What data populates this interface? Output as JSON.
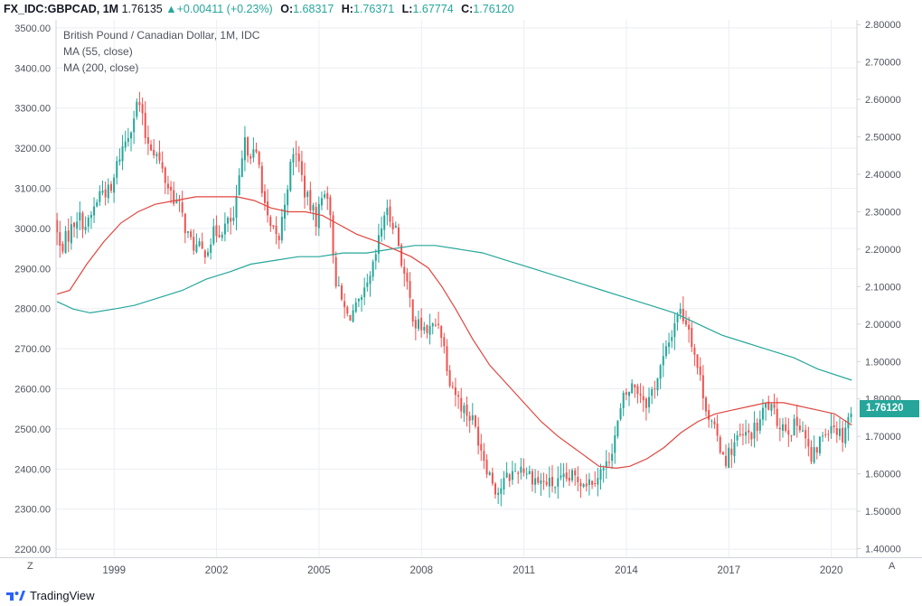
{
  "header": {
    "symbol": "FX_IDC:GBPCAD, 1M",
    "price": "1.76135",
    "change_arrow": "▲",
    "change": "+0.00411 (+0.23%)",
    "o_label": "O:",
    "o_value": "1.68317",
    "h_label": "H:",
    "h_value": "1.76371",
    "l_label": "L:",
    "l_value": "1.67774",
    "c_label": "C:",
    "c_value": "1.76120"
  },
  "legend": {
    "title": "British Pound / Canadian Dollar, 1M, IDC",
    "ma55": "MA (55, close)",
    "ma200": "MA (200, close)"
  },
  "price_badge": "1.76120",
  "corners": {
    "left": "Z",
    "right": "A"
  },
  "footer": {
    "brand": "TradingView"
  },
  "colors": {
    "up": "#26a69a",
    "down": "#ef5350",
    "ma55": "#e0463f",
    "ma200": "#26a69a",
    "grid": "#eceef2"
  },
  "chart_data": {
    "type": "candlestick",
    "title": "British Pound / Canadian Dollar, 1M, IDC",
    "x_range": [
      1997.3,
      2020.75
    ],
    "x_ticks": [
      {
        "year": 1999,
        "label": "1999"
      },
      {
        "year": 2002,
        "label": "2002"
      },
      {
        "year": 2005,
        "label": "2005"
      },
      {
        "year": 2008,
        "label": "2008"
      },
      {
        "year": 2011,
        "label": "2011"
      },
      {
        "year": 2014,
        "label": "2014"
      },
      {
        "year": 2017,
        "label": "2017"
      },
      {
        "year": 2020,
        "label": "2020"
      }
    ],
    "left_axis": {
      "range": [
        2180,
        3520
      ],
      "ticks": [
        "2200.00",
        "2300.00",
        "2400.00",
        "2500.00",
        "2600.00",
        "2700.00",
        "2800.00",
        "2900.00",
        "3000.00",
        "3100.00",
        "3200.00",
        "3300.00",
        "3400.00",
        "3500.00"
      ]
    },
    "right_axis": {
      "range": [
        1.3771,
        2.8126
      ],
      "ticks": [
        "1.40000",
        "1.50000",
        "1.60000",
        "1.70000",
        "1.80000",
        "1.90000",
        "2.00000",
        "2.10000",
        "2.20000",
        "2.30000",
        "2.40000",
        "2.50000",
        "2.60000",
        "2.70000",
        "2.80000"
      ]
    },
    "anchors": [
      [
        1997.33,
        2.28
      ],
      [
        1997.5,
        2.2
      ],
      [
        1997.75,
        2.24
      ],
      [
        1998.0,
        2.29
      ],
      [
        1998.3,
        2.26
      ],
      [
        1998.7,
        2.36
      ],
      [
        1999.0,
        2.35
      ],
      [
        1999.2,
        2.44
      ],
      [
        1999.5,
        2.51
      ],
      [
        1999.8,
        2.6
      ],
      [
        2000.0,
        2.5
      ],
      [
        2000.3,
        2.46
      ],
      [
        2000.6,
        2.38
      ],
      [
        2001.0,
        2.31
      ],
      [
        2001.3,
        2.22
      ],
      [
        2001.7,
        2.19
      ],
      [
        2002.0,
        2.24
      ],
      [
        2002.3,
        2.26
      ],
      [
        2002.6,
        2.28
      ],
      [
        2002.9,
        2.48
      ],
      [
        2003.3,
        2.44
      ],
      [
        2003.6,
        2.26
      ],
      [
        2003.9,
        2.22
      ],
      [
        2004.2,
        2.4
      ],
      [
        2004.4,
        2.47
      ],
      [
        2004.7,
        2.34
      ],
      [
        2005.0,
        2.28
      ],
      [
        2005.3,
        2.38
      ],
      [
        2005.6,
        2.1
      ],
      [
        2005.9,
        2.02
      ],
      [
        2006.3,
        2.05
      ],
      [
        2006.6,
        2.12
      ],
      [
        2006.9,
        2.25
      ],
      [
        2007.0,
        2.3
      ],
      [
        2007.3,
        2.27
      ],
      [
        2007.6,
        2.12
      ],
      [
        2007.9,
        2.0
      ],
      [
        2008.3,
        1.98
      ],
      [
        2008.6,
        2.01
      ],
      [
        2008.9,
        1.86
      ],
      [
        2009.2,
        1.79
      ],
      [
        2009.6,
        1.74
      ],
      [
        2010.0,
        1.62
      ],
      [
        2010.3,
        1.55
      ],
      [
        2010.6,
        1.59
      ],
      [
        2011.0,
        1.62
      ],
      [
        2011.5,
        1.58
      ],
      [
        2012.0,
        1.57
      ],
      [
        2012.5,
        1.59
      ],
      [
        2013.0,
        1.58
      ],
      [
        2013.5,
        1.62
      ],
      [
        2013.8,
        1.72
      ],
      [
        2014.0,
        1.8
      ],
      [
        2014.3,
        1.84
      ],
      [
        2014.7,
        1.79
      ],
      [
        2015.0,
        1.86
      ],
      [
        2015.3,
        1.94
      ],
      [
        2015.6,
        2.04
      ],
      [
        2015.9,
        2.0
      ],
      [
        2016.2,
        1.87
      ],
      [
        2016.5,
        1.75
      ],
      [
        2016.8,
        1.68
      ],
      [
        2017.0,
        1.64
      ],
      [
        2017.3,
        1.69
      ],
      [
        2017.6,
        1.7
      ],
      [
        2017.9,
        1.72
      ],
      [
        2018.2,
        1.79
      ],
      [
        2018.5,
        1.74
      ],
      [
        2018.9,
        1.72
      ],
      [
        2019.2,
        1.74
      ],
      [
        2019.5,
        1.63
      ],
      [
        2019.8,
        1.7
      ],
      [
        2020.1,
        1.74
      ],
      [
        2020.4,
        1.7
      ],
      [
        2020.6,
        1.7612
      ]
    ],
    "ma55": [
      [
        1997.33,
        2.08
      ],
      [
        1997.7,
        2.09
      ],
      [
        1998.2,
        2.16
      ],
      [
        1998.7,
        2.22
      ],
      [
        1999.2,
        2.27
      ],
      [
        1999.7,
        2.3
      ],
      [
        2000.2,
        2.32
      ],
      [
        2000.8,
        2.33
      ],
      [
        2001.4,
        2.34
      ],
      [
        2002.0,
        2.34
      ],
      [
        2002.6,
        2.34
      ],
      [
        2003.1,
        2.33
      ],
      [
        2003.6,
        2.31
      ],
      [
        2004.1,
        2.3
      ],
      [
        2004.6,
        2.3
      ],
      [
        2005.1,
        2.29
      ],
      [
        2005.5,
        2.27
      ],
      [
        2006.1,
        2.24
      ],
      [
        2006.7,
        2.22
      ],
      [
        2007.2,
        2.2
      ],
      [
        2007.7,
        2.18
      ],
      [
        2008.2,
        2.15
      ],
      [
        2008.6,
        2.1
      ],
      [
        2009.0,
        2.04
      ],
      [
        2009.5,
        1.96
      ],
      [
        2010.0,
        1.89
      ],
      [
        2010.5,
        1.84
      ],
      [
        2011.0,
        1.79
      ],
      [
        2011.5,
        1.74
      ],
      [
        2012.0,
        1.7
      ],
      [
        2012.6,
        1.66
      ],
      [
        2013.2,
        1.62
      ],
      [
        2013.7,
        1.615
      ],
      [
        2014.1,
        1.62
      ],
      [
        2014.6,
        1.64
      ],
      [
        2015.1,
        1.67
      ],
      [
        2015.6,
        1.71
      ],
      [
        2016.1,
        1.74
      ],
      [
        2016.6,
        1.76
      ],
      [
        2017.1,
        1.77
      ],
      [
        2017.6,
        1.78
      ],
      [
        2018.1,
        1.79
      ],
      [
        2018.6,
        1.79
      ],
      [
        2019.1,
        1.78
      ],
      [
        2019.6,
        1.77
      ],
      [
        2020.1,
        1.76
      ],
      [
        2020.6,
        1.73
      ]
    ],
    "ma200": [
      [
        1997.33,
        2.06
      ],
      [
        1997.8,
        2.04
      ],
      [
        1998.3,
        2.03
      ],
      [
        1999.0,
        2.04
      ],
      [
        1999.6,
        2.05
      ],
      [
        2000.3,
        2.07
      ],
      [
        2001.0,
        2.09
      ],
      [
        2001.7,
        2.12
      ],
      [
        2002.4,
        2.14
      ],
      [
        2003.0,
        2.16
      ],
      [
        2003.7,
        2.17
      ],
      [
        2004.4,
        2.18
      ],
      [
        2005.0,
        2.18
      ],
      [
        2005.7,
        2.19
      ],
      [
        2006.4,
        2.19
      ],
      [
        2007.1,
        2.2
      ],
      [
        2007.8,
        2.21
      ],
      [
        2008.4,
        2.21
      ],
      [
        2009.1,
        2.2
      ],
      [
        2009.8,
        2.19
      ],
      [
        2010.5,
        2.17
      ],
      [
        2011.2,
        2.15
      ],
      [
        2011.9,
        2.13
      ],
      [
        2012.6,
        2.11
      ],
      [
        2013.3,
        2.09
      ],
      [
        2014.0,
        2.07
      ],
      [
        2014.7,
        2.05
      ],
      [
        2015.4,
        2.03
      ],
      [
        2016.1,
        2.0
      ],
      [
        2016.8,
        1.97
      ],
      [
        2017.5,
        1.95
      ],
      [
        2018.2,
        1.93
      ],
      [
        2018.9,
        1.91
      ],
      [
        2019.6,
        1.88
      ],
      [
        2020.6,
        1.85
      ]
    ]
  }
}
